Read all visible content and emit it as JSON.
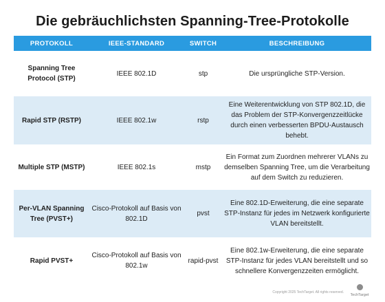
{
  "title": "Die gebräuchlichsten Spanning-Tree-Protokolle",
  "headers": [
    "PROTOKOLL",
    "IEEE-STANDARD",
    "SWITCH",
    "BESCHREIBUNG"
  ],
  "rows": [
    {
      "protocol": "Spanning Tree Protocol (STP)",
      "standard": "IEEE 802.1D",
      "switch": "stp",
      "description": "Die ursprüngliche STP-Version."
    },
    {
      "protocol": "Rapid STP (RSTP)",
      "standard": "IEEE 802.1w",
      "switch": "rstp",
      "description": "Eine Weiterentwicklung von STP 802.1D, die das Problem der STP-Konvergenzzeitlücke durch einen verbesserten BPDU-Austausch behebt."
    },
    {
      "protocol": "Multiple STP (MSTP)",
      "standard": "IEEE 802.1s",
      "switch": "mstp",
      "description": "Ein Format zum Zuordnen mehrerer VLANs zu demselben Spanning Tree, um die Verarbeitung auf dem Switch zu reduzieren."
    },
    {
      "protocol": "Per-VLAN Spanning Tree (PVST+)",
      "standard": "Cisco-Protokoll auf Basis von 802.1D",
      "switch": "pvst",
      "description": "Eine 802.1D-Erweiterung, die eine separate STP-Instanz für jedes im Netzwerk konfigurierte VLAN bereitstellt."
    },
    {
      "protocol": "Rapid PVST+",
      "standard": "Cisco-Protokoll auf Basis von 802.1w",
      "switch": "rapid-pvst",
      "description": "Eine 802.1w-Erweiterung, die eine separate STP-Instanz für jedes VLAN bereitstellt und so schnellere Konvergenzzeiten ermöglicht."
    }
  ],
  "footer": {
    "copyright": "Copyright 2025 TechTarget. All rights reserved.",
    "logo_text": "TechTarget"
  },
  "colors": {
    "header_bg": "#2a9be0",
    "alt_row_bg": "#dcebf6"
  }
}
